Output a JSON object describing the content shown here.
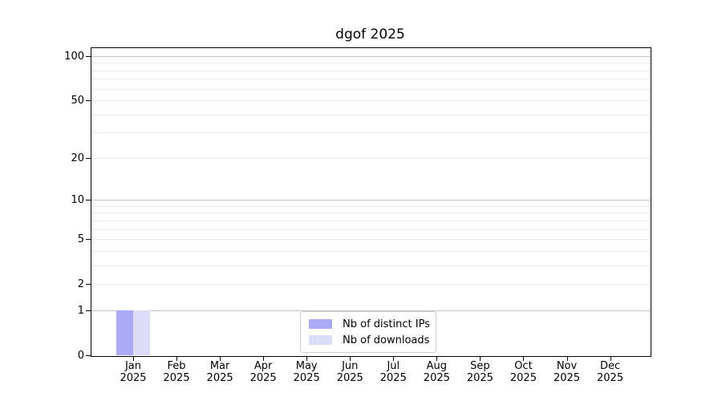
{
  "chart_data": {
    "type": "bar",
    "title": "dgof 2025",
    "x": {
      "months": [
        "Jan",
        "Feb",
        "Mar",
        "Apr",
        "May",
        "Jun",
        "Jul",
        "Aug",
        "Sep",
        "Oct",
        "Nov",
        "Dec"
      ],
      "year": "2025"
    },
    "series": [
      {
        "key": "distinct-ips",
        "name": "Nb of distinct IPs",
        "color": "#aaaaf7",
        "values": [
          1,
          0,
          0,
          0,
          0,
          0,
          0,
          0,
          0,
          0,
          0,
          0
        ]
      },
      {
        "key": "downloads",
        "name": "Nb of downloads",
        "color": "#dcdcf8",
        "values": [
          1,
          0,
          0,
          0,
          0,
          0,
          0,
          0,
          0,
          0,
          0,
          0
        ]
      }
    ],
    "y_axis": {
      "scale": "log10(1+v)",
      "tick_values": [
        0,
        1,
        2,
        5,
        10,
        20,
        50,
        100
      ],
      "major_grid_values": [
        1,
        10,
        100
      ],
      "minor_grid_values": [
        2,
        3,
        4,
        5,
        6,
        7,
        8,
        9,
        20,
        30,
        40,
        50,
        60,
        70,
        80,
        90
      ],
      "ylim": [
        0,
        115
      ]
    },
    "legend": {
      "position": "lower center"
    },
    "colors": {
      "bar_distinct_ips": "#aaaaf7",
      "bar_downloads": "#dcdcf8",
      "major_grid": "#c4c4c4",
      "minor_grid": "#ebebeb",
      "axis": "#000000",
      "legend_border": "#cccccc"
    }
  }
}
